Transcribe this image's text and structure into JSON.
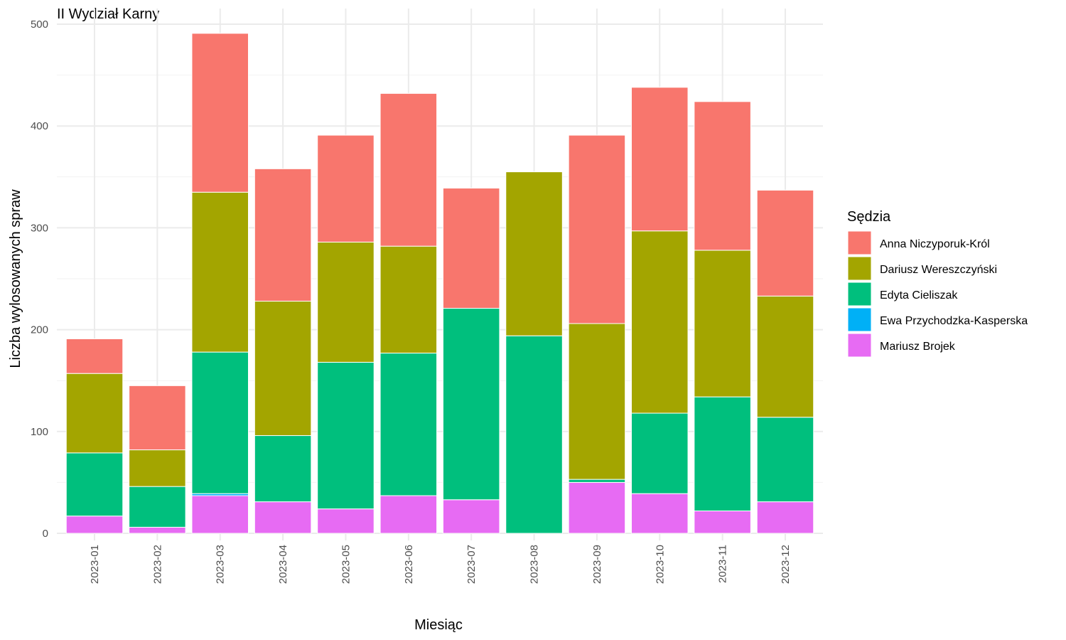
{
  "chart_data": {
    "type": "bar",
    "stacked": true,
    "title": "II Wydział Karny",
    "xlabel": "Miesiąc",
    "ylabel": "Liczba wylosowanych spraw",
    "ylim": [
      0,
      500
    ],
    "y_ticks": [
      0,
      100,
      200,
      300,
      400,
      500
    ],
    "grid": true,
    "legend_title": "Sędzia",
    "legend_position": "right",
    "categories": [
      "2023-01",
      "2023-02",
      "2023-03",
      "2023-04",
      "2023-05",
      "2023-06",
      "2023-07",
      "2023-08",
      "2023-09",
      "2023-10",
      "2023-11",
      "2023-12"
    ],
    "series": [
      {
        "name": "Mariusz Brojek",
        "color": "#E76BF3",
        "values": [
          17,
          6,
          37,
          31,
          24,
          37,
          33,
          0,
          50,
          39,
          22,
          31
        ]
      },
      {
        "name": "Ewa Przychodzka-Kasperska",
        "color": "#00B0F6",
        "values": [
          0,
          0,
          2,
          0,
          0,
          0,
          0,
          0,
          0,
          0,
          0,
          0
        ]
      },
      {
        "name": "Edyta Cieliszak",
        "color": "#00BF7D",
        "values": [
          62,
          40,
          139,
          65,
          144,
          140,
          188,
          194,
          3,
          79,
          112,
          83
        ]
      },
      {
        "name": "Dariusz Wereszczyński",
        "color": "#A3A500",
        "values": [
          78,
          36,
          157,
          132,
          118,
          105,
          0,
          161,
          153,
          179,
          144,
          119
        ]
      },
      {
        "name": "Anna Niczyporuk-Król",
        "color": "#F8766D",
        "values": [
          34,
          63,
          156,
          130,
          105,
          150,
          118,
          0,
          185,
          141,
          146,
          104
        ]
      }
    ],
    "legend_order": [
      "Anna Niczyporuk-Król",
      "Dariusz Wereszczyński",
      "Edyta Cieliszak",
      "Ewa Przychodzka-Kasperska",
      "Mariusz Brojek"
    ]
  }
}
